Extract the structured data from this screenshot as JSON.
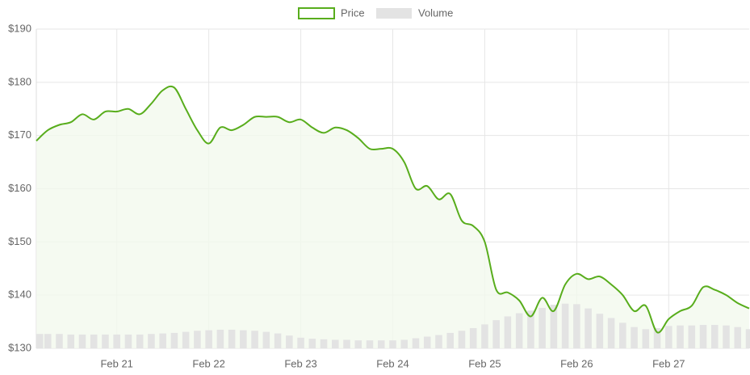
{
  "chart_data": {
    "type": "line",
    "legend": "top",
    "grid": true,
    "categories": [
      null,
      null,
      null,
      null,
      null,
      null,
      null,
      "Feb 21",
      null,
      null,
      null,
      null,
      null,
      null,
      null,
      "Feb 22",
      null,
      null,
      null,
      null,
      null,
      null,
      null,
      "Feb 23",
      null,
      null,
      null,
      null,
      null,
      null,
      null,
      "Feb 24",
      null,
      null,
      null,
      null,
      null,
      null,
      null,
      "Feb 25",
      null,
      null,
      null,
      null,
      null,
      null,
      null,
      "Feb 26",
      null,
      null,
      null,
      null,
      null,
      null,
      null,
      "Feb 27",
      null,
      null,
      null,
      null,
      null,
      null,
      null
    ],
    "series": [
      {
        "name": "Price",
        "type": "line",
        "color": "#58ad1c",
        "fill": "#f3f9ee",
        "values": [
          169,
          171,
          172,
          172.5,
          174,
          173,
          174.5,
          174.5,
          175,
          174,
          176,
          178.5,
          179,
          175,
          171,
          168.5,
          171.5,
          171,
          172,
          173.5,
          173.5,
          173.5,
          172.5,
          173,
          171.5,
          170.5,
          171.5,
          171,
          169.5,
          167.5,
          167.5,
          167.5,
          165,
          160,
          160.5,
          158,
          159,
          154,
          153,
          150,
          141,
          140.5,
          139,
          136,
          139.5,
          137,
          142,
          144,
          143,
          143.5,
          142,
          140,
          137,
          138,
          133,
          135.5,
          137,
          138,
          141.5,
          141,
          140,
          138.5,
          137.5
        ]
      },
      {
        "name": "Volume",
        "type": "bar",
        "color": "#e3e3e3",
        "values": [
          132.7,
          132.7,
          132.7,
          132.6,
          132.6,
          132.6,
          132.6,
          132.6,
          132.6,
          132.6,
          132.7,
          132.8,
          132.9,
          133.1,
          133.3,
          133.4,
          133.5,
          133.5,
          133.4,
          133.3,
          133.1,
          132.8,
          132.4,
          132.0,
          131.8,
          131.7,
          131.6,
          131.6,
          131.5,
          131.5,
          131.5,
          131.5,
          131.6,
          131.9,
          132.2,
          132.5,
          132.9,
          133.3,
          133.8,
          134.5,
          135.3,
          136.0,
          136.6,
          137.1,
          137.6,
          138.2,
          138.4,
          138.3,
          137.5,
          136.5,
          135.7,
          134.8,
          134.0,
          133.6,
          133.8,
          134.2,
          134.3,
          134.3,
          134.4,
          134.4,
          134.3,
          134.0,
          133.6
        ]
      }
    ],
    "ylim": [
      130,
      190
    ],
    "yticks": [
      {
        "value": 130,
        "label": "$130"
      },
      {
        "value": 140,
        "label": "$140"
      },
      {
        "value": 150,
        "label": "$150"
      },
      {
        "value": 160,
        "label": "$160"
      },
      {
        "value": 170,
        "label": "$170"
      },
      {
        "value": 180,
        "label": "$180"
      },
      {
        "value": 190,
        "label": "$190"
      }
    ]
  }
}
